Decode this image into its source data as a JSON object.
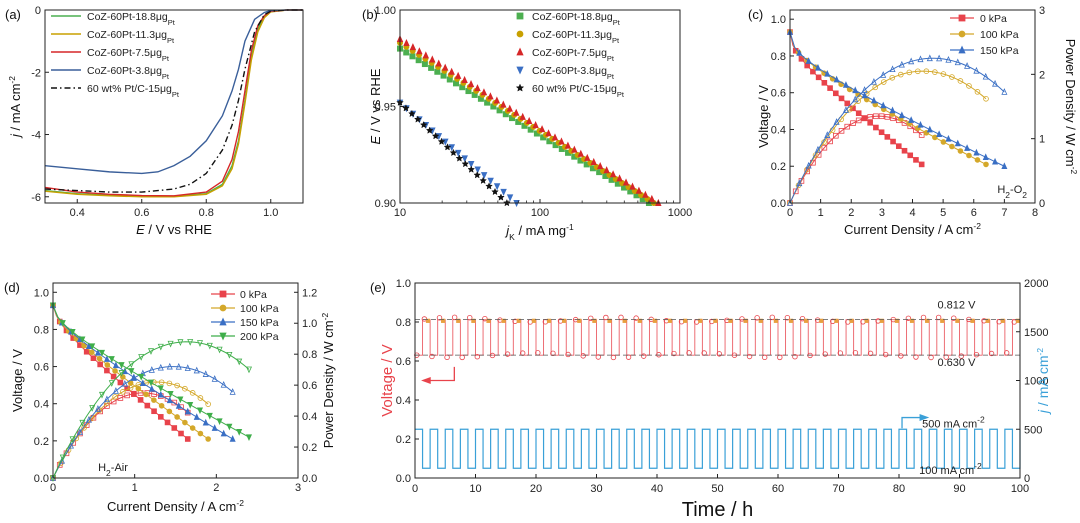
{
  "chart_data": [
    {
      "panel": "(a)",
      "type": "line",
      "xlabel": "E / V vs RHE",
      "ylabel": "j / mA cm-2",
      "xlim": [
        0.3,
        1.1
      ],
      "ylim": [
        -6.2,
        0
      ],
      "xticks": [
        0.4,
        0.6,
        0.8,
        1.0
      ],
      "yticks": [
        -6,
        -4,
        -2,
        0
      ],
      "legend": "top-left",
      "series": [
        {
          "name": "CoZ-60Pt-18.8μgPt",
          "color": "#4caf50",
          "dash": "",
          "x": [
            0.3,
            0.4,
            0.5,
            0.6,
            0.7,
            0.8,
            0.85,
            0.88,
            0.9,
            0.92,
            0.94,
            0.96,
            0.98,
            1.0,
            1.05,
            1.1
          ],
          "y": [
            -5.8,
            -5.9,
            -5.95,
            -5.98,
            -5.98,
            -5.9,
            -5.6,
            -5.0,
            -4.2,
            -2.9,
            -1.5,
            -0.6,
            -0.2,
            -0.05,
            0,
            0
          ]
        },
        {
          "name": "CoZ-60Pt-11.3μgPt",
          "color": "#c8a000",
          "dash": "",
          "x": [
            0.3,
            0.4,
            0.5,
            0.6,
            0.7,
            0.8,
            0.85,
            0.88,
            0.9,
            0.92,
            0.94,
            0.96,
            0.98,
            1.0,
            1.05,
            1.1
          ],
          "y": [
            -5.82,
            -5.92,
            -5.97,
            -6.0,
            -6.0,
            -5.92,
            -5.65,
            -5.1,
            -4.3,
            -3.0,
            -1.6,
            -0.7,
            -0.25,
            -0.06,
            0,
            0
          ]
        },
        {
          "name": "CoZ-60Pt-7.5μgPt",
          "color": "#d62728",
          "dash": "",
          "x": [
            0.3,
            0.4,
            0.5,
            0.6,
            0.7,
            0.8,
            0.85,
            0.88,
            0.9,
            0.92,
            0.94,
            0.96,
            0.98,
            1.0,
            1.05,
            1.1
          ],
          "y": [
            -5.7,
            -5.85,
            -5.92,
            -5.96,
            -5.97,
            -5.85,
            -5.5,
            -4.8,
            -3.9,
            -2.6,
            -1.3,
            -0.5,
            -0.18,
            -0.04,
            0,
            0
          ]
        },
        {
          "name": "CoZ-60Pt-3.8μgPt",
          "color": "#3a5f9a",
          "dash": "",
          "x": [
            0.3,
            0.4,
            0.5,
            0.6,
            0.65,
            0.7,
            0.75,
            0.8,
            0.85,
            0.88,
            0.9,
            0.92,
            0.95,
            0.98,
            1.0,
            1.05,
            1.1
          ],
          "y": [
            -5.0,
            -5.1,
            -5.2,
            -5.25,
            -5.2,
            -5.0,
            -4.7,
            -4.2,
            -3.4,
            -2.6,
            -1.9,
            -1.0,
            -0.3,
            -0.08,
            -0.02,
            0,
            0
          ]
        },
        {
          "name": "60 wt% Pt/C-15μgPt",
          "color": "#111111",
          "dash": "6,3,1.5,3",
          "x": [
            0.3,
            0.4,
            0.5,
            0.6,
            0.7,
            0.75,
            0.8,
            0.85,
            0.88,
            0.9,
            0.92,
            0.95,
            0.98,
            1.0,
            1.05,
            1.1
          ],
          "y": [
            -5.75,
            -5.8,
            -5.85,
            -5.85,
            -5.75,
            -5.6,
            -5.25,
            -4.5,
            -3.7,
            -2.9,
            -1.9,
            -0.7,
            -0.15,
            -0.04,
            0,
            0
          ]
        }
      ]
    },
    {
      "panel": "(b)",
      "type": "scatter",
      "xlabel": "jK / mA mg-1Pt",
      "ylabel": "E / V vs RHE",
      "xscale": "log",
      "xlim": [
        10,
        1000
      ],
      "ylim": [
        0.9,
        1.0
      ],
      "xticks": [
        10,
        100,
        1000
      ],
      "yticks": [
        0.9,
        0.95,
        1.0
      ],
      "legend": "top-right",
      "series": [
        {
          "name": "CoZ-60Pt-18.8μgPt",
          "color": "#4caf50",
          "marker": "square",
          "x1": 10,
          "y1": 0.98,
          "x2": 600,
          "y2": 0.9
        },
        {
          "name": "CoZ-60Pt-11.3μgPt",
          "color": "#c8a000",
          "marker": "circle",
          "x1": 10,
          "y1": 0.983,
          "x2": 650,
          "y2": 0.9
        },
        {
          "name": "CoZ-60Pt-7.5μgPt",
          "color": "#d62728",
          "marker": "triangle",
          "x1": 10,
          "y1": 0.985,
          "x2": 700,
          "y2": 0.9
        },
        {
          "name": "CoZ-60Pt-3.8μgPt",
          "color": "#3a6fc4",
          "marker": "triangle-down",
          "x1": 10,
          "y1": 0.952,
          "x2": 68,
          "y2": 0.9
        },
        {
          "name": "60 wt% Pt/C-15μgPt",
          "color": "#111111",
          "marker": "star",
          "x1": 10,
          "y1": 0.952,
          "x2": 58,
          "y2": 0.9
        }
      ]
    },
    {
      "panel": "(c)",
      "type": "line",
      "xlabel": "Current Density / A cm-2",
      "ylabel": "Voltage / V",
      "ylabel_right": "Power Density / W cm-2",
      "xlim": [
        0,
        8
      ],
      "ylim": [
        0,
        1.05
      ],
      "ylim_right": [
        0,
        3
      ],
      "xticks": [
        0,
        1,
        2,
        3,
        4,
        5,
        6,
        7,
        8
      ],
      "yticks": [
        0.0,
        0.2,
        0.4,
        0.6,
        0.8,
        1.0
      ],
      "yticks_right": [
        0,
        1,
        2,
        3
      ],
      "annotation": "H2-O2",
      "legend": "top-right",
      "series": [
        {
          "name": "0 kPa",
          "color": "#e8434b",
          "marker": "square",
          "xmax": 4.3,
          "vend": 0.21,
          "pmax": 1.35
        },
        {
          "name": "100 kPa",
          "color": "#d4a82a",
          "marker": "circle",
          "xmax": 6.4,
          "vend": 0.21,
          "pmax": 2.05
        },
        {
          "name": "150 kPa",
          "color": "#3a6fc4",
          "marker": "triangle",
          "xmax": 7.0,
          "vend": 0.2,
          "pmax": 2.25
        }
      ]
    },
    {
      "panel": "(d)",
      "type": "line",
      "xlabel": "Current Density / A cm-2",
      "ylabel": "Voltage / V",
      "ylabel_right": "Power Density / W cm-2",
      "xlim": [
        0,
        3
      ],
      "ylim": [
        0,
        1.05
      ],
      "ylim_right": [
        0,
        1.26
      ],
      "xticks": [
        0,
        1,
        2,
        3
      ],
      "yticks": [
        0.0,
        0.2,
        0.4,
        0.6,
        0.8,
        1.0
      ],
      "yticks_right": [
        0.0,
        0.2,
        0.4,
        0.6,
        0.8,
        1.0,
        1.2
      ],
      "annotation": "H2-Air",
      "legend": "top-right",
      "series": [
        {
          "name": "0 kPa",
          "color": "#e8434b",
          "marker": "square",
          "xmax": 1.65,
          "vend": 0.21,
          "pmax": 0.55
        },
        {
          "name": "100 kPa",
          "color": "#d4a82a",
          "marker": "circle",
          "xmax": 1.9,
          "vend": 0.21,
          "pmax": 0.62
        },
        {
          "name": "150 kPa",
          "color": "#3a6fc4",
          "marker": "triangle",
          "xmax": 2.2,
          "vend": 0.21,
          "pmax": 0.72
        },
        {
          "name": "200 kPa",
          "color": "#3fae4a",
          "marker": "triangle-down",
          "xmax": 2.4,
          "vend": 0.22,
          "pmax": 0.88
        }
      ]
    },
    {
      "panel": "(e)",
      "type": "line",
      "xlabel": "Time / h",
      "ylabel": "Voltage / V",
      "ylabel_right": "j / mA cm-2",
      "xlim": [
        0,
        100
      ],
      "ylim": [
        0,
        1.0
      ],
      "ylim_right": [
        0,
        2000
      ],
      "xticks": [
        0,
        10,
        20,
        30,
        40,
        50,
        60,
        70,
        80,
        90,
        100
      ],
      "yticks": [
        0.0,
        0.2,
        0.4,
        0.6,
        0.8,
        1.0
      ],
      "yticks_right": [
        0,
        500,
        1000,
        1500,
        2000
      ],
      "annotations": [
        "0.812 V",
        "0.630 V",
        "500 mA cm-2",
        "100 mA cm-2"
      ],
      "series": [
        {
          "name": "voltage",
          "color": "#e8434b",
          "high": 0.812,
          "low": 0.63
        },
        {
          "name": "current",
          "color": "#3aa0d8",
          "high": 500,
          "low": 100,
          "period_h": 2.5
        }
      ]
    }
  ]
}
